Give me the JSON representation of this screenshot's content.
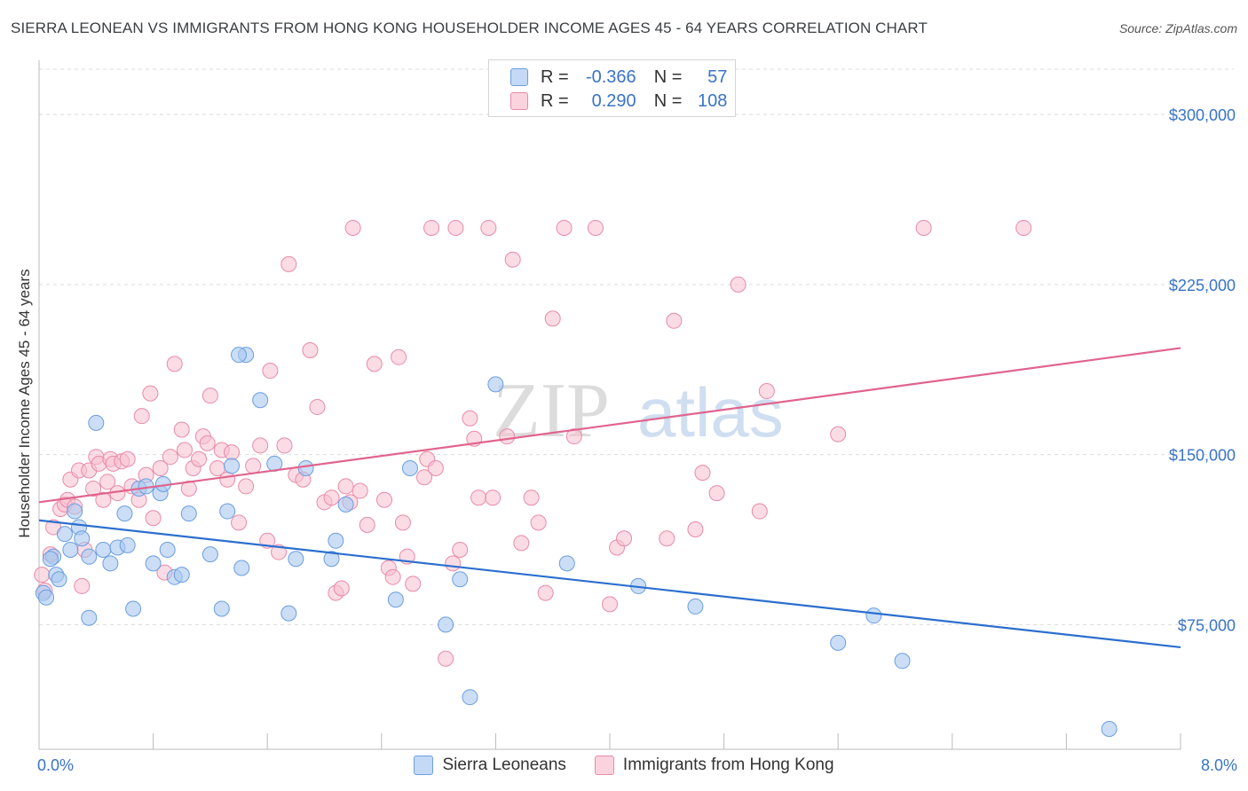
{
  "title": "SIERRA LEONEAN VS IMMIGRANTS FROM HONG KONG HOUSEHOLDER INCOME AGES 45 - 64 YEARS CORRELATION CHART",
  "source": "Source: ZipAtlas.com",
  "watermark": {
    "part1": "ZIP",
    "part2": "atlas"
  },
  "legend": {
    "row1": {
      "r_label": "R =",
      "r_value": "-0.366",
      "n_label": "N =",
      "n_value": "57"
    },
    "row2": {
      "r_label": "R =",
      "r_value": "0.290",
      "n_label": "N =",
      "n_value": "108"
    }
  },
  "colors": {
    "blue_fill": "#a9c8f0",
    "blue_stroke": "#6b9ee0",
    "blue_line": "#2b6fce",
    "pink_fill": "#f7bfd0",
    "pink_stroke": "#e98aa8",
    "pink_line": "#e0648e",
    "axis_text": "#3a73c8"
  },
  "chart_data": {
    "type": "scatter",
    "ylabel": "Householder Income Ages 45 - 64 years",
    "xlim": [
      0,
      8
    ],
    "ylim": [
      20000,
      320000
    ],
    "x_tick_labels": [
      "0.0%",
      "8.0%"
    ],
    "y_ticks": [
      75000,
      150000,
      225000,
      300000
    ],
    "y_tick_labels": [
      "$75,000",
      "$150,000",
      "$225,000",
      "$300,000"
    ],
    "grid": true,
    "legend_position": "top-center",
    "series": [
      {
        "name": "Sierra Leoneans",
        "color": "#6b9ee0",
        "trend": {
          "x": [
            0,
            8
          ],
          "y": [
            121000,
            65000
          ]
        },
        "points": [
          [
            0.03,
            89000
          ],
          [
            0.05,
            87000
          ],
          [
            0.1,
            105000
          ],
          [
            0.12,
            97000
          ],
          [
            0.14,
            95000
          ],
          [
            0.18,
            115000
          ],
          [
            0.22,
            108000
          ],
          [
            0.25,
            125000
          ],
          [
            0.28,
            118000
          ],
          [
            0.3,
            113000
          ],
          [
            0.35,
            105000
          ],
          [
            0.35,
            78000
          ],
          [
            0.45,
            108000
          ],
          [
            0.5,
            102000
          ],
          [
            0.55,
            109000
          ],
          [
            0.6,
            124000
          ],
          [
            0.62,
            110000
          ],
          [
            0.66,
            82000
          ],
          [
            0.7,
            135000
          ],
          [
            0.8,
            102000
          ],
          [
            0.85,
            133000
          ],
          [
            0.87,
            137000
          ],
          [
            0.9,
            108000
          ],
          [
            0.95,
            96000
          ],
          [
            1.0,
            97000
          ],
          [
            1.05,
            124000
          ],
          [
            1.2,
            106000
          ],
          [
            1.28,
            82000
          ],
          [
            1.32,
            125000
          ],
          [
            1.35,
            145000
          ],
          [
            1.42,
            100000
          ],
          [
            1.45,
            194000
          ],
          [
            1.55,
            174000
          ],
          [
            1.65,
            146000
          ],
          [
            1.75,
            80000
          ],
          [
            1.8,
            104000
          ],
          [
            1.87,
            144000
          ],
          [
            2.05,
            104000
          ],
          [
            2.08,
            112000
          ],
          [
            2.15,
            128000
          ],
          [
            2.5,
            86000
          ],
          [
            2.6,
            144000
          ],
          [
            2.85,
            75000
          ],
          [
            2.95,
            95000
          ],
          [
            3.02,
            43000
          ],
          [
            3.2,
            181000
          ],
          [
            3.7,
            102000
          ],
          [
            4.2,
            92000
          ],
          [
            4.6,
            83000
          ],
          [
            5.6,
            67000
          ],
          [
            5.85,
            79000
          ],
          [
            6.05,
            59000
          ],
          [
            7.5,
            29000
          ],
          [
            1.4,
            194000
          ],
          [
            0.08,
            104000
          ],
          [
            0.4,
            164000
          ],
          [
            0.75,
            136000
          ]
        ]
      },
      {
        "name": "Immigrants from Hong Kong",
        "color": "#e98aa8",
        "trend": {
          "x": [
            0,
            8
          ],
          "y": [
            129000,
            197000
          ]
        },
        "points": [
          [
            0.02,
            97000
          ],
          [
            0.04,
            90000
          ],
          [
            0.08,
            106000
          ],
          [
            0.1,
            118000
          ],
          [
            0.15,
            126000
          ],
          [
            0.18,
            128000
          ],
          [
            0.2,
            130000
          ],
          [
            0.22,
            139000
          ],
          [
            0.25,
            127000
          ],
          [
            0.28,
            143000
          ],
          [
            0.3,
            92000
          ],
          [
            0.32,
            108000
          ],
          [
            0.35,
            143000
          ],
          [
            0.38,
            135000
          ],
          [
            0.4,
            149000
          ],
          [
            0.42,
            146000
          ],
          [
            0.45,
            130000
          ],
          [
            0.48,
            138000
          ],
          [
            0.5,
            148000
          ],
          [
            0.52,
            146000
          ],
          [
            0.55,
            133000
          ],
          [
            0.58,
            147000
          ],
          [
            0.62,
            148000
          ],
          [
            0.65,
            136000
          ],
          [
            0.7,
            130000
          ],
          [
            0.72,
            167000
          ],
          [
            0.75,
            141000
          ],
          [
            0.78,
            177000
          ],
          [
            0.8,
            122000
          ],
          [
            0.85,
            144000
          ],
          [
            0.88,
            98000
          ],
          [
            0.92,
            149000
          ],
          [
            0.95,
            190000
          ],
          [
            1.0,
            161000
          ],
          [
            1.02,
            152000
          ],
          [
            1.05,
            135000
          ],
          [
            1.08,
            144000
          ],
          [
            1.12,
            148000
          ],
          [
            1.15,
            158000
          ],
          [
            1.18,
            155000
          ],
          [
            1.2,
            176000
          ],
          [
            1.25,
            144000
          ],
          [
            1.28,
            152000
          ],
          [
            1.32,
            139000
          ],
          [
            1.35,
            151000
          ],
          [
            1.4,
            120000
          ],
          [
            1.45,
            136000
          ],
          [
            1.5,
            145000
          ],
          [
            1.55,
            154000
          ],
          [
            1.6,
            112000
          ],
          [
            1.62,
            187000
          ],
          [
            1.68,
            107000
          ],
          [
            1.72,
            154000
          ],
          [
            1.75,
            234000
          ],
          [
            1.8,
            141000
          ],
          [
            1.85,
            139000
          ],
          [
            1.9,
            196000
          ],
          [
            1.95,
            171000
          ],
          [
            2.0,
            129000
          ],
          [
            2.05,
            131000
          ],
          [
            2.08,
            89000
          ],
          [
            2.12,
            91000
          ],
          [
            2.15,
            136000
          ],
          [
            2.18,
            129000
          ],
          [
            2.2,
            250000
          ],
          [
            2.25,
            134000
          ],
          [
            2.3,
            119000
          ],
          [
            2.35,
            190000
          ],
          [
            2.42,
            130000
          ],
          [
            2.45,
            100000
          ],
          [
            2.48,
            96000
          ],
          [
            2.52,
            193000
          ],
          [
            2.55,
            120000
          ],
          [
            2.58,
            105000
          ],
          [
            2.62,
            93000
          ],
          [
            2.7,
            140000
          ],
          [
            2.72,
            148000
          ],
          [
            2.75,
            250000
          ],
          [
            2.78,
            144000
          ],
          [
            2.85,
            60000
          ],
          [
            2.9,
            102000
          ],
          [
            2.92,
            250000
          ],
          [
            2.95,
            108000
          ],
          [
            3.02,
            166000
          ],
          [
            3.05,
            157000
          ],
          [
            3.08,
            131000
          ],
          [
            3.15,
            250000
          ],
          [
            3.18,
            131000
          ],
          [
            3.28,
            158000
          ],
          [
            3.32,
            236000
          ],
          [
            3.38,
            111000
          ],
          [
            3.45,
            131000
          ],
          [
            3.5,
            120000
          ],
          [
            3.55,
            89000
          ],
          [
            3.6,
            210000
          ],
          [
            3.68,
            250000
          ],
          [
            3.75,
            158000
          ],
          [
            3.9,
            250000
          ],
          [
            4.0,
            84000
          ],
          [
            4.05,
            109000
          ],
          [
            4.1,
            113000
          ],
          [
            4.4,
            113000
          ],
          [
            4.45,
            209000
          ],
          [
            4.6,
            117000
          ],
          [
            4.65,
            142000
          ],
          [
            4.75,
            133000
          ],
          [
            4.9,
            225000
          ],
          [
            5.05,
            125000
          ],
          [
            5.1,
            178000
          ],
          [
            5.6,
            159000
          ],
          [
            6.2,
            250000
          ],
          [
            6.9,
            250000
          ]
        ]
      }
    ]
  }
}
